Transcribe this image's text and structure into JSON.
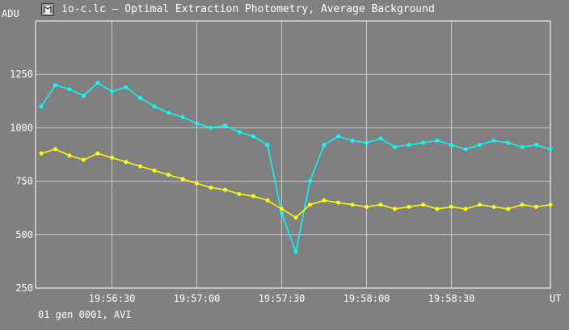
{
  "window": {
    "title": "io-c.lc – Optimal Extraction Photometry, Average Background",
    "icon": "app-logo-icon"
  },
  "footer": {
    "text": "01 gen 0001, AVI"
  },
  "colors": {
    "background": "#808080",
    "grid": "#c8c8c8",
    "series_cyan": "#00ffff",
    "series_yellow": "#ffff00"
  },
  "chart_data": {
    "type": "line",
    "title": "",
    "ylabel": "ADU",
    "xlabel": "UT",
    "ylim": [
      250,
      1500
    ],
    "yticks": [
      250,
      500,
      750,
      1000,
      1250
    ],
    "xlim": [
      "19:56:03",
      "19:59:05"
    ],
    "xticks": [
      "19:56:30",
      "19:57:00",
      "19:57:30",
      "19:58:00",
      "19:58:30"
    ],
    "grid": true,
    "markers": true,
    "series": [
      {
        "color": "#00ffff",
        "x": [
          "19:56:05",
          "19:56:10",
          "19:56:15",
          "19:56:20",
          "19:56:25",
          "19:56:30",
          "19:56:35",
          "19:56:40",
          "19:56:45",
          "19:56:50",
          "19:56:55",
          "19:57:00",
          "19:57:05",
          "19:57:10",
          "19:57:15",
          "19:57:20",
          "19:57:25",
          "19:57:30",
          "19:57:35",
          "19:57:40",
          "19:57:45",
          "19:57:50",
          "19:57:55",
          "19:58:00",
          "19:58:05",
          "19:58:10",
          "19:58:15",
          "19:58:20",
          "19:58:25",
          "19:58:30",
          "19:58:35",
          "19:58:40",
          "19:58:45",
          "19:58:50",
          "19:58:55",
          "19:59:00",
          "19:59:05"
        ],
        "values": [
          1100,
          1200,
          1180,
          1150,
          1210,
          1170,
          1190,
          1140,
          1100,
          1070,
          1050,
          1020,
          1000,
          1010,
          980,
          960,
          920,
          600,
          420,
          750,
          920,
          960,
          940,
          930,
          950,
          910,
          920,
          930,
          940,
          920,
          900,
          920,
          940,
          930,
          910,
          920,
          900
        ]
      },
      {
        "color": "#ffff00",
        "x": [
          "19:56:05",
          "19:56:10",
          "19:56:15",
          "19:56:20",
          "19:56:25",
          "19:56:30",
          "19:56:35",
          "19:56:40",
          "19:56:45",
          "19:56:50",
          "19:56:55",
          "19:57:00",
          "19:57:05",
          "19:57:10",
          "19:57:15",
          "19:57:20",
          "19:57:25",
          "19:57:30",
          "19:57:35",
          "19:57:40",
          "19:57:45",
          "19:57:50",
          "19:57:55",
          "19:58:00",
          "19:58:05",
          "19:58:10",
          "19:58:15",
          "19:58:20",
          "19:58:25",
          "19:58:30",
          "19:58:35",
          "19:58:40",
          "19:58:45",
          "19:58:50",
          "19:58:55",
          "19:59:00",
          "19:59:05"
        ],
        "values": [
          880,
          900,
          870,
          850,
          880,
          860,
          840,
          820,
          800,
          780,
          760,
          740,
          720,
          710,
          690,
          680,
          660,
          620,
          580,
          640,
          660,
          650,
          640,
          630,
          640,
          620,
          630,
          640,
          620,
          630,
          620,
          640,
          630,
          620,
          640,
          630,
          640
        ]
      }
    ]
  }
}
